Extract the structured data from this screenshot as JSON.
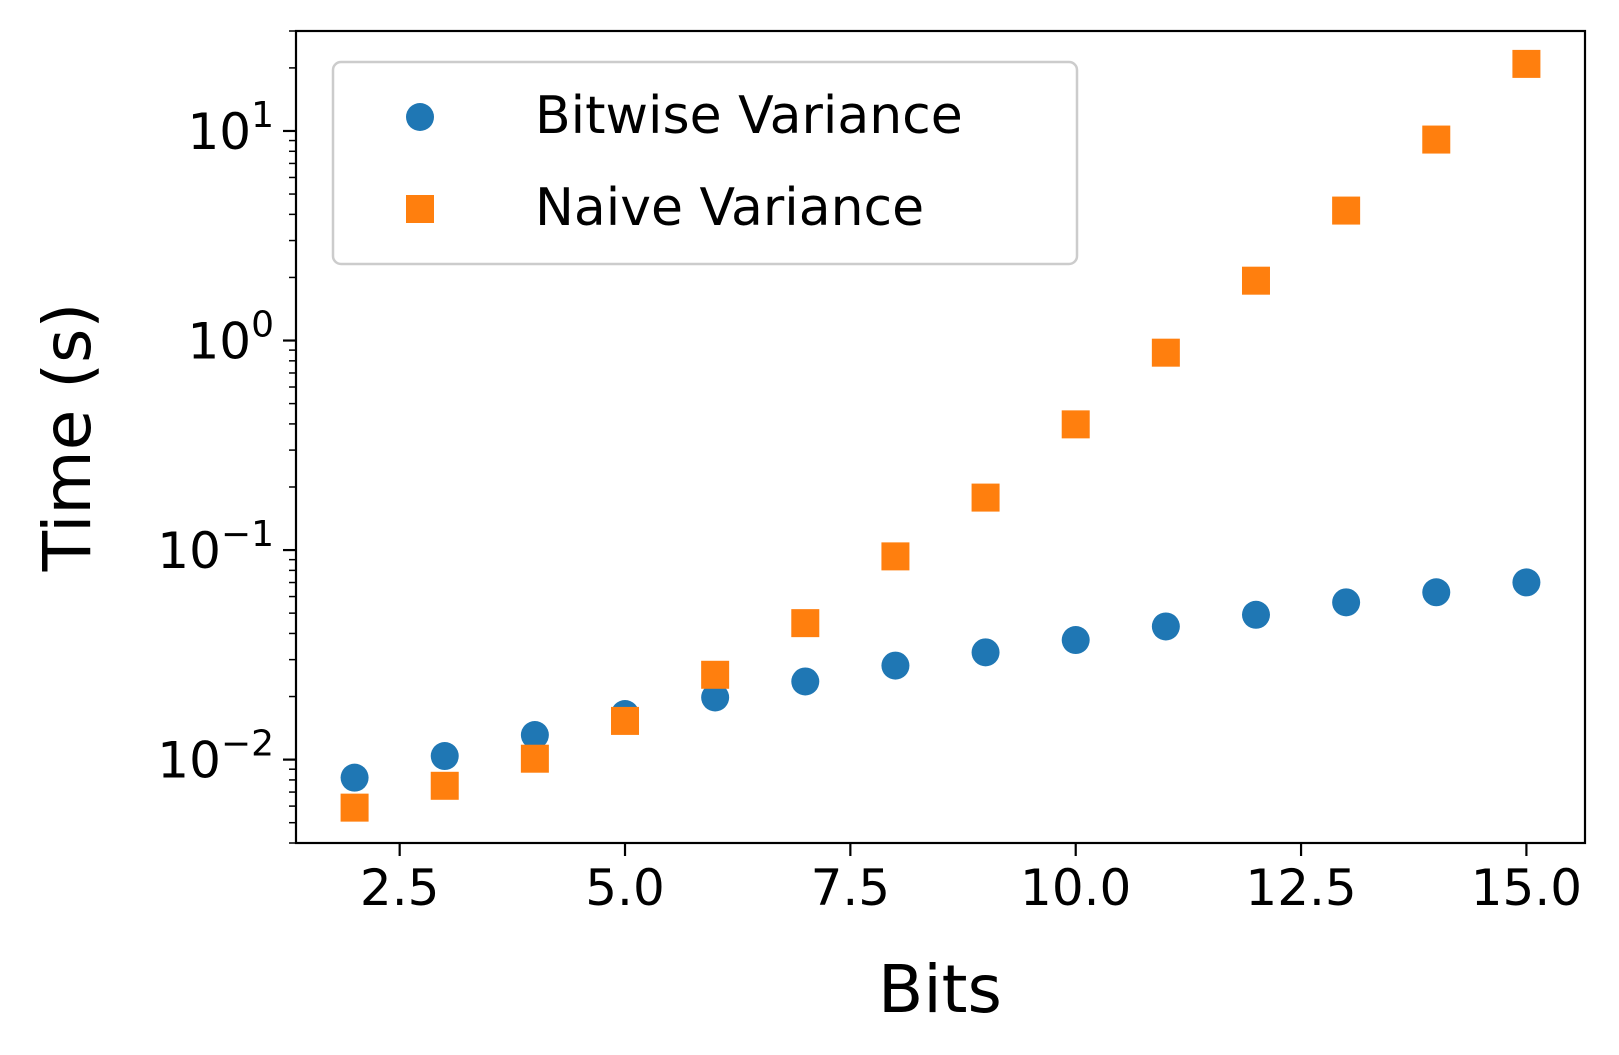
{
  "chart_data": {
    "type": "scatter",
    "xlabel": "Bits",
    "ylabel": "Time (s)",
    "y_scale": "log",
    "xlim": [
      1.35,
      15.65
    ],
    "ylim": [
      0.004,
      30
    ],
    "grid": false,
    "legend_position": "top-left",
    "x_ticks": [
      2.5,
      5.0,
      7.5,
      10.0,
      12.5,
      15.0
    ],
    "x_tick_labels": [
      "2.5",
      "5.0",
      "7.5",
      "10.0",
      "12.5",
      "15.0"
    ],
    "y_ticks": [
      0.01,
      0.1,
      1,
      10
    ],
    "y_tick_labels": [
      {
        "base": "10",
        "exp": "−2"
      },
      {
        "base": "10",
        "exp": "−1"
      },
      {
        "base": "10",
        "exp": "0"
      },
      {
        "base": "10",
        "exp": "1"
      }
    ],
    "series": [
      {
        "name": "Bitwise Variance",
        "marker": "circle",
        "color": "#1f77b4",
        "x": [
          2,
          3,
          4,
          5,
          6,
          7,
          8,
          9,
          10,
          11,
          12,
          13,
          14,
          15
        ],
        "y": [
          0.0082,
          0.0104,
          0.0131,
          0.0165,
          0.0198,
          0.0236,
          0.0281,
          0.0325,
          0.0372,
          0.0432,
          0.0491,
          0.0563,
          0.0629,
          0.0701
        ]
      },
      {
        "name": "Naive Variance",
        "marker": "square",
        "color": "#ff7f0e",
        "x": [
          2,
          3,
          4,
          5,
          6,
          7,
          8,
          9,
          10,
          11,
          12,
          13,
          14,
          15
        ],
        "y": [
          0.0059,
          0.0075,
          0.0101,
          0.0153,
          0.0254,
          0.0448,
          0.0933,
          0.178,
          0.398,
          0.875,
          1.93,
          4.17,
          9.1,
          20.9
        ]
      }
    ]
  }
}
